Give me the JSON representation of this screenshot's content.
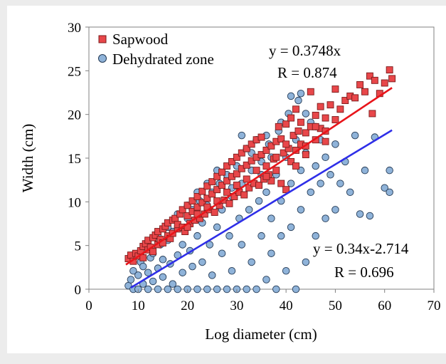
{
  "chart_data": {
    "type": "scatter",
    "xlabel": "Log diameter (cm)",
    "ylabel": "Width (cm)",
    "xlim": [
      0,
      70
    ],
    "ylim": [
      0,
      30
    ],
    "x_ticks": [
      "0",
      "10",
      "20",
      "30",
      "40",
      "50",
      "60",
      "70"
    ],
    "y_ticks": [
      "0",
      "5",
      "10",
      "15",
      "20",
      "25",
      "30"
    ],
    "legend_position": "top-left",
    "grid": false,
    "series": [
      {
        "name": "Sapwood",
        "marker": "square",
        "color": "#e8474a",
        "fit": {
          "slope": 0.3748,
          "intercept": 0,
          "x_range": [
            7.5,
            61.5
          ],
          "color": "#e8141a"
        },
        "points": [
          [
            8,
            3.5
          ],
          [
            8.5,
            3.9
          ],
          [
            9,
            3.2
          ],
          [
            9.5,
            4.1
          ],
          [
            10,
            3.8
          ],
          [
            10.5,
            4.4
          ],
          [
            11,
            4.9
          ],
          [
            11,
            3.6
          ],
          [
            11.5,
            5.2
          ],
          [
            12,
            4.5
          ],
          [
            12,
            5.6
          ],
          [
            12.5,
            4.8
          ],
          [
            13,
            5.9
          ],
          [
            13,
            4.3
          ],
          [
            13.5,
            6.2
          ],
          [
            14,
            5.1
          ],
          [
            14,
            6.6
          ],
          [
            14.5,
            5.7
          ],
          [
            15,
            6.9
          ],
          [
            15,
            5.3
          ],
          [
            15.5,
            7.2
          ],
          [
            16,
            6.1
          ],
          [
            16,
            7.6
          ],
          [
            16.5,
            5.8
          ],
          [
            17,
            7.9
          ],
          [
            17,
            6.4
          ],
          [
            17.5,
            8.1
          ],
          [
            18,
            6.9
          ],
          [
            18,
            7.4
          ],
          [
            18.5,
            8.6
          ],
          [
            19,
            7.1
          ],
          [
            19,
            9.1
          ],
          [
            19.5,
            6.6
          ],
          [
            20,
            8.4
          ],
          [
            20,
            9.6
          ],
          [
            20.5,
            7.5
          ],
          [
            21,
            8.9
          ],
          [
            21,
            10.1
          ],
          [
            21.5,
            7.9
          ],
          [
            22,
            9.4
          ],
          [
            22,
            10.6
          ],
          [
            22.5,
            8.1
          ],
          [
            23,
            9.9
          ],
          [
            23,
            11.2
          ],
          [
            23.5,
            8.6
          ],
          [
            24,
            10.4
          ],
          [
            24,
            11.8
          ],
          [
            24.5,
            9.1
          ],
          [
            25,
            10.9
          ],
          [
            25,
            12.3
          ],
          [
            25.5,
            8.8
          ],
          [
            26,
            11.4
          ],
          [
            26,
            12.9
          ],
          [
            26.5,
            9.6
          ],
          [
            27,
            11.9
          ],
          [
            27,
            13.4
          ],
          [
            27.5,
            10.2
          ],
          [
            28,
            12.4
          ],
          [
            28,
            14.1
          ],
          [
            28.5,
            9.8
          ],
          [
            29,
            12.9
          ],
          [
            29,
            14.6
          ],
          [
            29.5,
            10.6
          ],
          [
            30,
            13.2
          ],
          [
            30,
            15.1
          ],
          [
            30.5,
            11.1
          ],
          [
            31,
            13.8
          ],
          [
            31,
            15.6
          ],
          [
            31.5,
            10.8
          ],
          [
            32,
            14.2
          ],
          [
            32,
            16.1
          ],
          [
            32.5,
            11.6
          ],
          [
            33,
            14.7
          ],
          [
            33,
            16.6
          ],
          [
            33.5,
            12.1
          ],
          [
            34,
            15.1
          ],
          [
            34,
            17.1
          ],
          [
            34.5,
            11.9
          ],
          [
            35,
            15.4
          ],
          [
            35,
            17.4
          ],
          [
            35.5,
            12.6
          ],
          [
            36,
            15.9
          ],
          [
            36,
            14.1
          ],
          [
            36.5,
            13.1
          ],
          [
            37,
            16.4
          ],
          [
            37,
            12.4
          ],
          [
            37.5,
            14.9
          ],
          [
            38,
            16.9
          ],
          [
            38,
            13.6
          ],
          [
            38.5,
            18.6
          ],
          [
            39,
            17.2
          ],
          [
            39,
            12.1
          ],
          [
            39.5,
            15.6
          ],
          [
            40,
            18.9
          ],
          [
            40,
            11.4
          ],
          [
            40.5,
            16.1
          ],
          [
            41,
            14.6
          ],
          [
            41,
            19.6
          ],
          [
            41.5,
            17.6
          ],
          [
            42,
            15.9
          ],
          [
            42,
            20.6
          ],
          [
            42.5,
            18.1
          ],
          [
            43,
            16.6
          ],
          [
            43,
            19.1
          ],
          [
            44,
            17.9
          ],
          [
            44,
            15.4
          ],
          [
            45,
            18.6
          ],
          [
            45,
            22.6
          ],
          [
            46,
            19.9
          ],
          [
            46,
            17.1
          ],
          [
            47,
            18.4
          ],
          [
            47,
            20.9
          ],
          [
            48,
            19.6
          ],
          [
            48,
            16.9
          ],
          [
            49,
            21.1
          ],
          [
            50,
            19.4
          ],
          [
            50,
            22.9
          ],
          [
            51,
            20.6
          ],
          [
            52,
            21.6
          ],
          [
            53,
            22.1
          ],
          [
            54,
            21.9
          ],
          [
            55,
            23.4
          ],
          [
            56,
            22.6
          ],
          [
            57,
            24.4
          ],
          [
            57.5,
            20.1
          ],
          [
            58,
            23.9
          ],
          [
            59,
            22.4
          ],
          [
            60,
            23.6
          ],
          [
            61,
            25.1
          ],
          [
            61.5,
            24.1
          ],
          [
            20,
            7.1
          ],
          [
            22,
            8.6
          ],
          [
            24,
            9.4
          ],
          [
            26,
            10.1
          ],
          [
            28,
            11.1
          ],
          [
            30,
            11.9
          ],
          [
            32,
            12.6
          ],
          [
            34,
            13.6
          ],
          [
            36,
            12.9
          ],
          [
            38,
            15.1
          ],
          [
            40,
            16.6
          ],
          [
            42,
            14.1
          ],
          [
            44,
            16.4
          ],
          [
            46,
            18.6
          ],
          [
            48,
            18.1
          ]
        ]
      },
      {
        "name": "Dehydrated zone",
        "marker": "circle",
        "color": "#8fb3d9",
        "fit": {
          "slope": 0.34,
          "intercept": -2.714,
          "x_range": [
            8.5,
            61.5
          ],
          "color": "#2e2ee8"
        },
        "points": [
          [
            8,
            0.4
          ],
          [
            8.5,
            1.1
          ],
          [
            9,
            0
          ],
          [
            9,
            2.1
          ],
          [
            10,
            0
          ],
          [
            10,
            1.6
          ],
          [
            10.5,
            3.1
          ],
          [
            11,
            0.6
          ],
          [
            11,
            2.6
          ],
          [
            12,
            0
          ],
          [
            12,
            1.9
          ],
          [
            12.5,
            3.6
          ],
          [
            13,
            0.9
          ],
          [
            13,
            4.1
          ],
          [
            14,
            0
          ],
          [
            14,
            2.4
          ],
          [
            14.5,
            5.1
          ],
          [
            15,
            1.4
          ],
          [
            15,
            3.4
          ],
          [
            16,
            0
          ],
          [
            16,
            5.6
          ],
          [
            16.5,
            2.9
          ],
          [
            17,
            0.6
          ],
          [
            17,
            6.6
          ],
          [
            18,
            0
          ],
          [
            18,
            3.9
          ],
          [
            18.5,
            7.1
          ],
          [
            19,
            1.9
          ],
          [
            19,
            5.1
          ],
          [
            20,
            0
          ],
          [
            20,
            8.1
          ],
          [
            20.5,
            4.4
          ],
          [
            21,
            2.6
          ],
          [
            21,
            9.1
          ],
          [
            22,
            0
          ],
          [
            22,
            6.1
          ],
          [
            22.5,
            10.1
          ],
          [
            23,
            3.1
          ],
          [
            23,
            7.6
          ],
          [
            24,
            0
          ],
          [
            24,
            9.6
          ],
          [
            24.5,
            5.1
          ],
          [
            25,
            1.6
          ],
          [
            25,
            11.1
          ],
          [
            26,
            0
          ],
          [
            26,
            7.1
          ],
          [
            26.5,
            12.1
          ],
          [
            27,
            4.1
          ],
          [
            27,
            9.1
          ],
          [
            28,
            0
          ],
          [
            28,
            13.1
          ],
          [
            28.5,
            6.1
          ],
          [
            29,
            2.1
          ],
          [
            29,
            10.6
          ],
          [
            30,
            0
          ],
          [
            30,
            14.1
          ],
          [
            30.5,
            8.1
          ],
          [
            31,
            5.1
          ],
          [
            31,
            12.1
          ],
          [
            32,
            0
          ],
          [
            32,
            16.1
          ],
          [
            32.5,
            9.1
          ],
          [
            33,
            3.1
          ],
          [
            33,
            13.6
          ],
          [
            34,
            0
          ],
          [
            34,
            17.1
          ],
          [
            34.5,
            10.1
          ],
          [
            35,
            6.1
          ],
          [
            35,
            14.6
          ],
          [
            36,
            1.1
          ],
          [
            36,
            11.1
          ],
          [
            36.5,
            16.6
          ],
          [
            37,
            4.1
          ],
          [
            37,
            8.1
          ],
          [
            38,
            0
          ],
          [
            38,
            13.1
          ],
          [
            38.5,
            18.1
          ],
          [
            39,
            6.1
          ],
          [
            39,
            10.1
          ],
          [
            40,
            2.1
          ],
          [
            40,
            15.1
          ],
          [
            40.5,
            20.1
          ],
          [
            41,
            7.1
          ],
          [
            41,
            12.1
          ],
          [
            42,
            0
          ],
          [
            42,
            17.1
          ],
          [
            42.5,
            21.6
          ],
          [
            43,
            9.1
          ],
          [
            43,
            13.6
          ],
          [
            44,
            3.1
          ],
          [
            44,
            15.6
          ],
          [
            45,
            11.1
          ],
          [
            45,
            19.1
          ],
          [
            46,
            6.1
          ],
          [
            46,
            14.1
          ],
          [
            47,
            12.1
          ],
          [
            47,
            17.1
          ],
          [
            48,
            8.1
          ],
          [
            48,
            15.1
          ],
          [
            49,
            13.1
          ],
          [
            50,
            9.1
          ],
          [
            50,
            16.6
          ],
          [
            51,
            12.1
          ],
          [
            52,
            14.6
          ],
          [
            53,
            11.1
          ],
          [
            54,
            17.6
          ],
          [
            55,
            8.6
          ],
          [
            56,
            13.6
          ],
          [
            57,
            8.4
          ],
          [
            58,
            17.4
          ],
          [
            60,
            11.6
          ],
          [
            61,
            13.6
          ],
          [
            61,
            11.1
          ],
          [
            41,
            22.1
          ],
          [
            43,
            22.4
          ],
          [
            39,
            19.1
          ],
          [
            36,
            17.6
          ],
          [
            33,
            15.6
          ],
          [
            31,
            17.6
          ],
          [
            26,
            13.6
          ],
          [
            24,
            12.1
          ],
          [
            22,
            11.1
          ],
          [
            20,
            9.6
          ],
          [
            18,
            8.6
          ],
          [
            16,
            7.1
          ],
          [
            14,
            6.1
          ],
          [
            12,
            4.6
          ],
          [
            44,
            20.1
          ],
          [
            46,
            18.6
          ],
          [
            37,
            15.1
          ],
          [
            35,
            13.1
          ],
          [
            29,
            11.6
          ]
        ]
      }
    ],
    "annotations": [
      {
        "lines": [
          "y = 0.3748x",
          "R = 0.874"
        ],
        "anchor": "upper-right"
      },
      {
        "lines": [
          "y = 0.34x-2.714",
          "R = 0.696"
        ],
        "anchor": "lower-right"
      }
    ]
  }
}
